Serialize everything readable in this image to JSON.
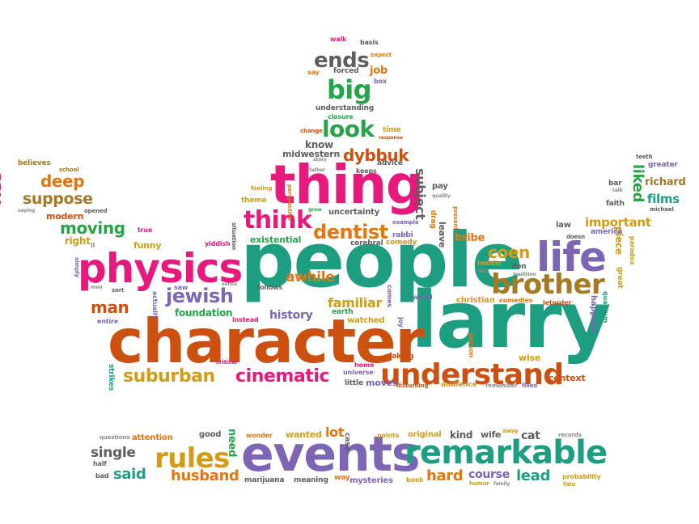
{
  "words": {
    "people": "people",
    "larry": "larry",
    "character": "character",
    "thing": "thing",
    "physics": "physics",
    "events": "events",
    "remarkable": "remarkable",
    "understand": "understand",
    "life": "life",
    "brother": "brother",
    "rules": "rules",
    "cinematic": "cinematic",
    "suburban": "suburban",
    "think": "think",
    "dentist": "dentist",
    "jewish": "jewish",
    "look": "look",
    "big": "big",
    "ends": "ends",
    "dybbuk": "dybbuk",
    "liked": "liked",
    "films": "films",
    "richard": "richard",
    "moving": "moving",
    "deep": "deep",
    "suppose": "suppose",
    "say": "say",
    "man": "man",
    "coen": "coen",
    "husband": "husband",
    "single": "single",
    "said": "said",
    "hard": "hard",
    "lead": "lead",
    "course": "course",
    "awhile": "awhile",
    "familiar": "familiar",
    "history": "history",
    "existential": "existential",
    "foundation": "foundation",
    "subject": "subject",
    "important": "important",
    "piece": "piece",
    "funny": "funny",
    "modern": "modern",
    "right": "right",
    "job": "job",
    "know": "know",
    "midwestern": "midwestern",
    "need": "need",
    "lot": "lot",
    "wanted": "wanted",
    "kind": "kind",
    "wife": "wife",
    "cat": "cat",
    "good": "good",
    "attention": "attention",
    "original": "original",
    "points": "points",
    "wonder": "wonder",
    "marijuana": "marijuana",
    "meaning": "meaning",
    "mysteries": "mysteries",
    "way": "way",
    "book": "book",
    "bad": "bad",
    "half": "half",
    "questions": "questions",
    "records": "records",
    "probability": "probability",
    "fate": "fate",
    "humor": "humor",
    "family": "family",
    "away": "away",
    "case": "case",
    "watched": "watched",
    "earth": "earth",
    "moves": "moves",
    "little": "little",
    "universe": "universe",
    "home": "home",
    "audience": "audience",
    "disturbing": "disturbing",
    "remember": "remember",
    "filled": "filled",
    "making": "making",
    "wise": "wise",
    "context": "context",
    "person": "person",
    "world": "world",
    "joy": "joy",
    "christian": "christian",
    "leave": "leave",
    "bribe": "bribe",
    "cerebral": "cerebral",
    "comedy": "comedy",
    "rabbi": "rabbi",
    "drag": "drag",
    "pay": "pay",
    "quality": "quality",
    "present": "present",
    "example": "example",
    "uncertainty": "uncertainty",
    "perspective": "perspective",
    "grow": "grow",
    "theme": "theme",
    "feeling": "feeling",
    "father": "father",
    "keeps": "keeps",
    "advice": "advice",
    "story": "story",
    "change": "change",
    "time": "time",
    "response": "response",
    "understanding": "understanding",
    "closure": "closure",
    "forced": "forced",
    "box": "box",
    "walk": "walk",
    "basis": "basis",
    "expect": "expect",
    "believes": "believes",
    "school": "school",
    "true": "true",
    "opened": "opened",
    "saying": "saying",
    "simply": "simply",
    "ll": "ll",
    "men": "men",
    "sort": "sort",
    "saw": "saw",
    "sense": "sense",
    "entire": "entire",
    "actually": "actually",
    "yiddish": "yiddish",
    "situation": "situation",
    "instead": "instead",
    "follows": "follows",
    "critical": "critical",
    "strikes": "strikes",
    "comes": "comes",
    "comedies": "comedies",
    "letorder": "letorder",
    "middle": "middle",
    "didn": "didn",
    "don": "don",
    "tradition": "tradition",
    "doesn": "doesn",
    "law": "law",
    "america": "america",
    "quantum": "quantum",
    "happens": "happens",
    "mystery": "mystery",
    "great": "great",
    "paradox": "paradox",
    "faith": "faith",
    "bar": "bar",
    "talk": "talk",
    "michael": "michael",
    "greater": "greater",
    "teeth": "teeth"
  },
  "colors": {
    "green": "#27a349",
    "teal": "#1e9e80",
    "orange": "#e27710",
    "pink": "#e8197c",
    "purple": "#7b65b4",
    "gold": "#d29d16",
    "brown": "#a47a25",
    "red": "#e1373a",
    "rust": "#cc5110",
    "gray": "#5e5e5e",
    "light_gray": "#8a8a8a"
  }
}
